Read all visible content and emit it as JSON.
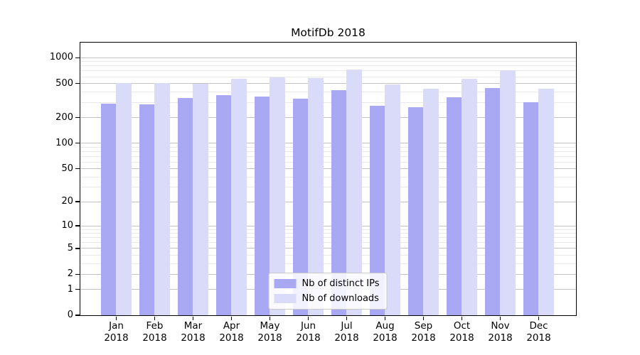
{
  "chart_data": {
    "type": "bar",
    "title": "MotifDb 2018",
    "xlabel": "",
    "ylabel": "",
    "year_label": "2018",
    "categories": [
      "Jan",
      "Feb",
      "Mar",
      "Apr",
      "May",
      "Jun",
      "Jul",
      "Aug",
      "Sep",
      "Oct",
      "Nov",
      "Dec"
    ],
    "series": [
      {
        "name": "Nb of distinct IPs",
        "color": "#a9a9f3",
        "values": [
          290,
          284,
          338,
          362,
          348,
          331,
          416,
          272,
          262,
          345,
          435,
          297
        ]
      },
      {
        "name": "Nb of downloads",
        "color": "#dadaf9",
        "values": [
          505,
          498,
          495,
          560,
          585,
          570,
          725,
          483,
          432,
          566,
          706,
          432
        ]
      }
    ],
    "y_axis": {
      "scale": "log1p",
      "min": 0,
      "max": 1500,
      "tick_values": [
        1000,
        500,
        200,
        100,
        50,
        20,
        10,
        5,
        2,
        1,
        0
      ],
      "tick_labels": [
        "1000",
        "500",
        "200",
        "100",
        "50",
        "20",
        "10",
        "5",
        "2",
        "1",
        "0"
      ],
      "minor_gridline_values": [
        900,
        800,
        700,
        600,
        400,
        300,
        90,
        80,
        70,
        60,
        40,
        30,
        9,
        8,
        7,
        6,
        4,
        3
      ]
    },
    "grid": true,
    "legend_position": "lower center"
  },
  "colors": {
    "major_grid": "#c2c2c2",
    "minor_grid": "#e8e8e8",
    "axis": "#000000",
    "background": "#ffffff"
  }
}
